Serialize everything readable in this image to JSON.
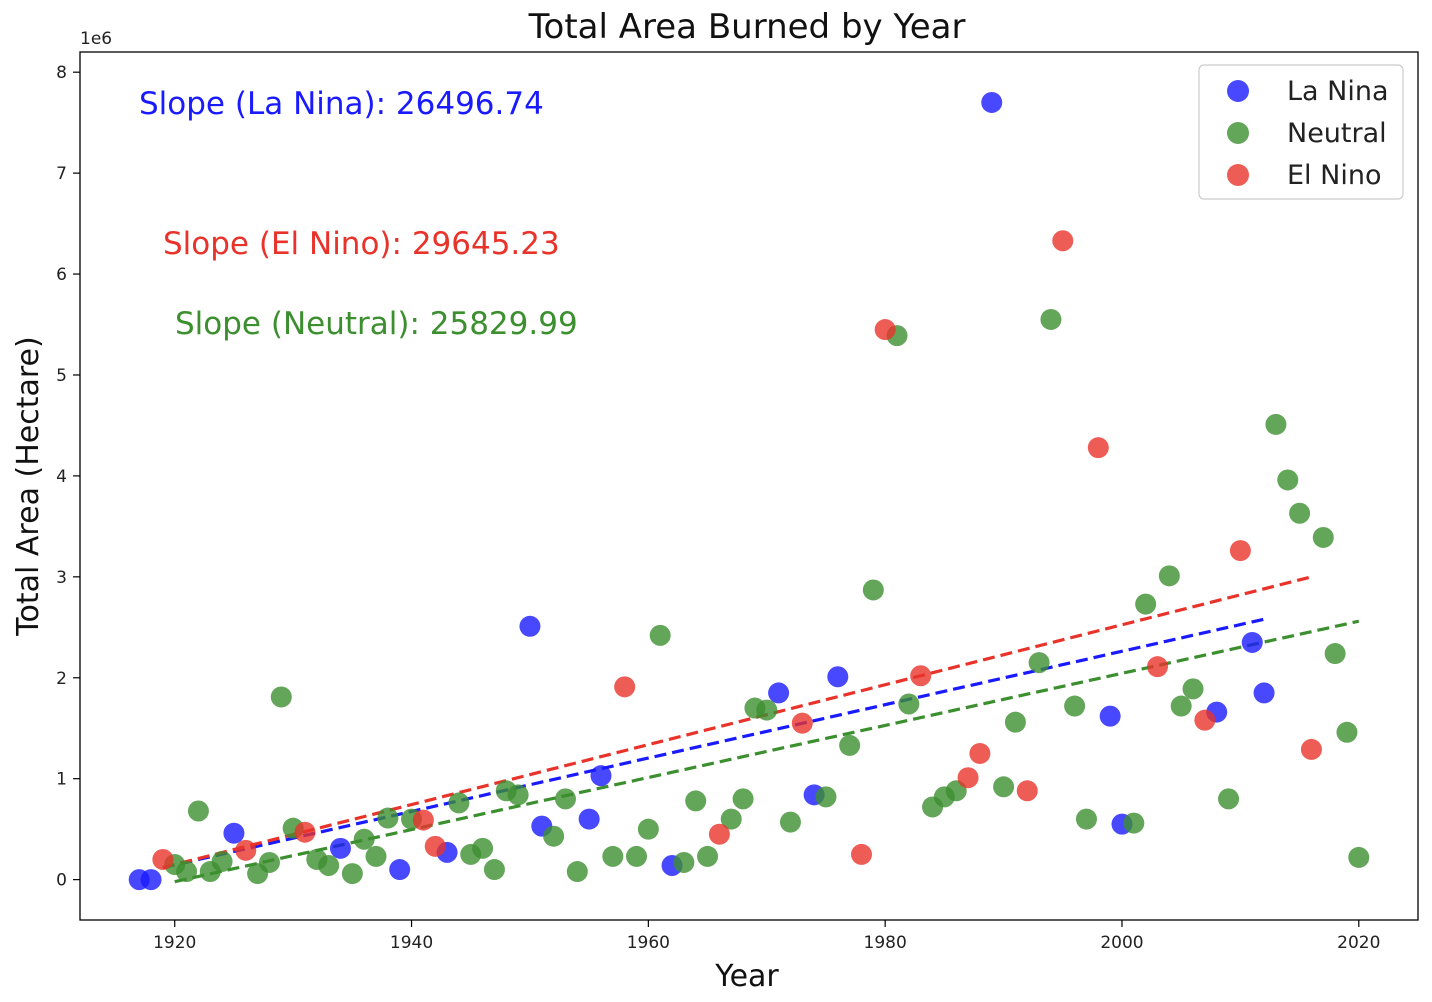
{
  "chart_data": {
    "type": "scatter",
    "title": "Total Area Burned by Year",
    "xlabel": "Year",
    "ylabel": "Total Area (Hectare)",
    "y_offset_label": "1e6",
    "xlim": [
      1912,
      2025
    ],
    "ylim": [
      -400000,
      8200000
    ],
    "xticks": [
      1920,
      1940,
      1960,
      1980,
      2000,
      2020
    ],
    "yticks": [
      0,
      1000000,
      2000000,
      3000000,
      4000000,
      5000000,
      6000000,
      7000000,
      8000000
    ],
    "ytick_labels": [
      "0",
      "1",
      "2",
      "3",
      "4",
      "5",
      "6",
      "7",
      "8"
    ],
    "grid": false,
    "legend_position": "top-right",
    "annotations": [
      {
        "text": "Slope (La Nina): 26496.74",
        "color": "#1a1aff",
        "series": "La Nina"
      },
      {
        "text": "Slope (El Nino): 29645.23",
        "color": "#e8332b",
        "series": "El Nino"
      },
      {
        "text": "Slope (Neutral): 25829.99",
        "color": "#3c8f2f",
        "series": "Neutral"
      }
    ],
    "series": [
      {
        "name": "La Nina",
        "color": "#1a1aff",
        "trend_color": "#1a1aff",
        "trend": {
          "x": [
            1919,
            2012
          ],
          "y": [
            120000,
            2580000
          ]
        },
        "points": [
          [
            1917,
            0
          ],
          [
            1918,
            0
          ],
          [
            1925,
            460000
          ],
          [
            1934,
            310000
          ],
          [
            1939,
            100000
          ],
          [
            1943,
            270000
          ],
          [
            1950,
            2510000
          ],
          [
            1951,
            530000
          ],
          [
            1955,
            600000
          ],
          [
            1956,
            1030000
          ],
          [
            1962,
            140000
          ],
          [
            1971,
            1850000
          ],
          [
            1974,
            840000
          ],
          [
            1976,
            2010000
          ],
          [
            1989,
            7700000
          ],
          [
            1999,
            1620000
          ],
          [
            2000,
            550000
          ],
          [
            2008,
            1660000
          ],
          [
            2011,
            2350000
          ],
          [
            2012,
            1850000
          ]
        ]
      },
      {
        "name": "Neutral",
        "color": "#3c8f2f",
        "trend_color": "#3c8f2f",
        "trend": {
          "x": [
            1920,
            2020
          ],
          "y": [
            -20000,
            2560000
          ]
        },
        "points": [
          [
            1920,
            150000
          ],
          [
            1921,
            80000
          ],
          [
            1922,
            680000
          ],
          [
            1923,
            80000
          ],
          [
            1924,
            180000
          ],
          [
            1927,
            60000
          ],
          [
            1928,
            170000
          ],
          [
            1929,
            1810000
          ],
          [
            1930,
            510000
          ],
          [
            1932,
            200000
          ],
          [
            1933,
            140000
          ],
          [
            1935,
            60000
          ],
          [
            1936,
            400000
          ],
          [
            1937,
            230000
          ],
          [
            1938,
            610000
          ],
          [
            1940,
            600000
          ],
          [
            1944,
            760000
          ],
          [
            1945,
            250000
          ],
          [
            1946,
            310000
          ],
          [
            1947,
            100000
          ],
          [
            1948,
            880000
          ],
          [
            1949,
            840000
          ],
          [
            1952,
            430000
          ],
          [
            1953,
            800000
          ],
          [
            1954,
            80000
          ],
          [
            1957,
            230000
          ],
          [
            1959,
            230000
          ],
          [
            1960,
            500000
          ],
          [
            1961,
            2420000
          ],
          [
            1963,
            170000
          ],
          [
            1964,
            780000
          ],
          [
            1965,
            230000
          ],
          [
            1967,
            600000
          ],
          [
            1968,
            800000
          ],
          [
            1969,
            1700000
          ],
          [
            1970,
            1680000
          ],
          [
            1972,
            570000
          ],
          [
            1975,
            820000
          ],
          [
            1977,
            1330000
          ],
          [
            1979,
            2870000
          ],
          [
            1981,
            5390000
          ],
          [
            1982,
            1740000
          ],
          [
            1984,
            720000
          ],
          [
            1985,
            820000
          ],
          [
            1986,
            880000
          ],
          [
            1990,
            920000
          ],
          [
            1991,
            1560000
          ],
          [
            1993,
            2150000
          ],
          [
            1994,
            5550000
          ],
          [
            1996,
            1720000
          ],
          [
            1997,
            600000
          ],
          [
            2001,
            560000
          ],
          [
            2002,
            2730000
          ],
          [
            2004,
            3010000
          ],
          [
            2005,
            1720000
          ],
          [
            2006,
            1890000
          ],
          [
            2009,
            800000
          ],
          [
            2013,
            4510000
          ],
          [
            2014,
            3960000
          ],
          [
            2015,
            3630000
          ],
          [
            2017,
            3390000
          ],
          [
            2018,
            2240000
          ],
          [
            2019,
            1460000
          ],
          [
            2020,
            220000
          ]
        ]
      },
      {
        "name": "El Nino",
        "color": "#e8332b",
        "trend_color": "#e8332b",
        "trend": {
          "x": [
            1919,
            2016
          ],
          "y": [
            120000,
            3000000
          ]
        },
        "points": [
          [
            1919,
            200000
          ],
          [
            1926,
            290000
          ],
          [
            1931,
            470000
          ],
          [
            1941,
            590000
          ],
          [
            1942,
            330000
          ],
          [
            1958,
            1910000
          ],
          [
            1966,
            450000
          ],
          [
            1973,
            1550000
          ],
          [
            1978,
            250000
          ],
          [
            1980,
            5450000
          ],
          [
            1983,
            2020000
          ],
          [
            1987,
            1010000
          ],
          [
            1988,
            1250000
          ],
          [
            1992,
            880000
          ],
          [
            1995,
            6330000
          ],
          [
            1998,
            4280000
          ],
          [
            2003,
            2110000
          ],
          [
            2007,
            1580000
          ],
          [
            2010,
            3260000
          ],
          [
            2016,
            1290000
          ]
        ]
      }
    ]
  }
}
